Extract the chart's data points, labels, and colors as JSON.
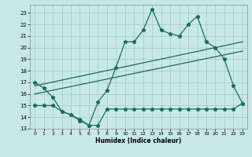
{
  "bg_color": "#c8e8e8",
  "grid_color": "#a0c8c8",
  "line_color": "#1a6b5a",
  "xlabel": "Humidex (Indice chaleur)",
  "xlim": [
    -0.5,
    23.5
  ],
  "ylim": [
    13,
    23.7
  ],
  "yticks": [
    13,
    14,
    15,
    16,
    17,
    18,
    19,
    20,
    21,
    22,
    23
  ],
  "xticks": [
    0,
    1,
    2,
    3,
    4,
    5,
    6,
    7,
    8,
    9,
    10,
    11,
    12,
    13,
    14,
    15,
    16,
    17,
    18,
    19,
    20,
    21,
    22,
    23
  ],
  "line1_x": [
    0,
    1,
    2,
    3,
    4,
    5,
    6,
    7,
    8,
    9,
    10,
    11,
    12,
    13,
    14,
    15,
    16,
    17,
    18,
    19,
    20,
    21,
    22,
    23
  ],
  "line1_y": [
    17.0,
    16.5,
    15.7,
    14.5,
    14.2,
    13.7,
    13.3,
    15.3,
    16.3,
    18.3,
    20.5,
    20.5,
    21.5,
    23.3,
    21.5,
    21.2,
    21.0,
    22.0,
    22.7,
    20.5,
    20.0,
    19.0,
    16.7,
    15.2
  ],
  "line2_x": [
    0,
    23
  ],
  "line2_y": [
    16.7,
    20.5
  ],
  "line3_x": [
    0,
    23
  ],
  "line3_y": [
    16.0,
    19.7
  ],
  "line4_x": [
    0,
    1,
    2,
    3,
    4,
    5,
    6,
    7,
    8,
    9,
    10,
    11,
    12,
    13,
    14,
    15,
    16,
    17,
    18,
    19,
    20,
    21,
    22,
    23
  ],
  "line4_y": [
    15.0,
    15.0,
    15.0,
    14.5,
    14.2,
    13.8,
    13.3,
    13.3,
    14.7,
    14.7,
    14.7,
    14.7,
    14.7,
    14.7,
    14.7,
    14.7,
    14.7,
    14.7,
    14.7,
    14.7,
    14.7,
    14.7,
    14.7,
    15.2
  ],
  "figsize": [
    3.2,
    2.0
  ],
  "dpi": 100
}
